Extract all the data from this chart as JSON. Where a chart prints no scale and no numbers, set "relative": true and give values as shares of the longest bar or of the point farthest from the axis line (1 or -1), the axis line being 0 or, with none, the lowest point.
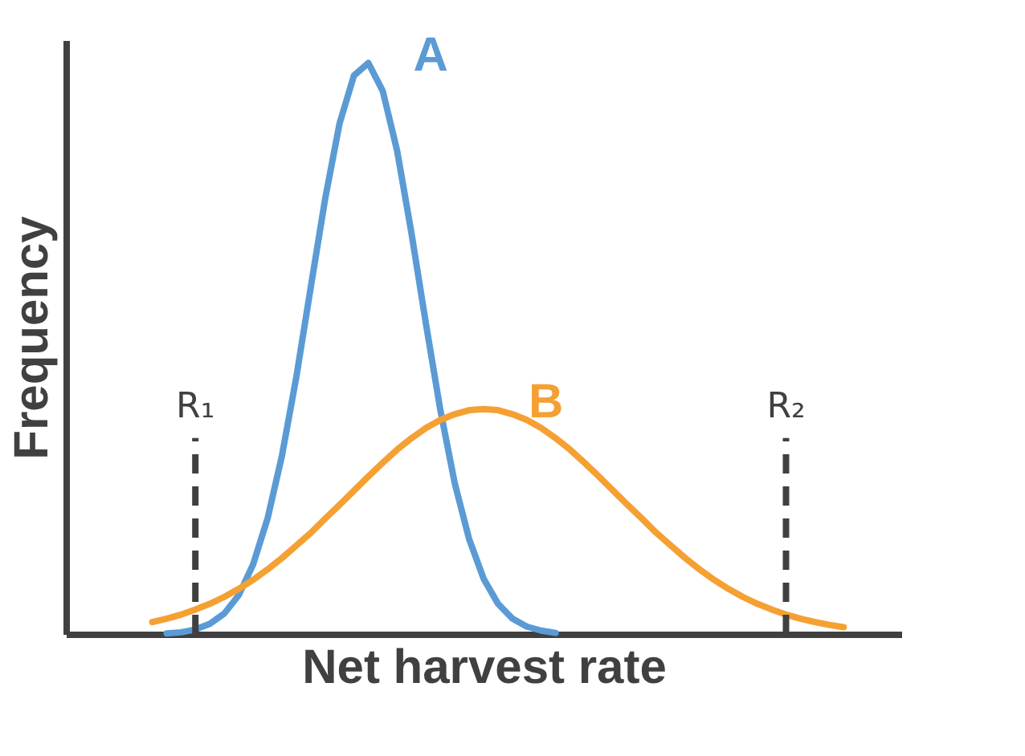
{
  "chart_data": {
    "type": "line",
    "relative": true,
    "xlabel": "Net harvest rate",
    "ylabel": "Frequency",
    "categories": [
      null,
      null,
      null,
      null,
      null,
      null,
      null,
      null,
      null,
      null,
      null,
      null,
      null,
      null,
      null,
      null,
      null,
      null,
      null,
      null,
      null,
      null,
      null,
      null,
      null,
      null,
      null,
      null,
      null,
      null,
      null,
      null,
      null,
      null,
      null,
      null,
      null,
      null,
      null,
      null,
      null,
      null,
      null,
      null,
      null,
      null,
      null,
      null,
      null,
      null,
      null,
      null,
      null,
      null,
      null,
      null,
      null
    ],
    "series": [
      {
        "name": "A",
        "color": "#5b9bd5",
        "values": [
          null,
          null,
          null,
          null,
          null,
          null,
          0.001,
          0.003,
          0.008,
          0.018,
          0.036,
          0.068,
          0.122,
          0.202,
          0.312,
          0.45,
          0.607,
          0.762,
          0.894,
          0.978,
          1,
          0.951,
          0.846,
          0.701,
          0.543,
          0.392,
          0.264,
          0.166,
          0.097,
          0.053,
          0.027,
          0.013,
          0.006,
          0.002,
          null,
          null,
          null,
          null,
          null,
          null,
          null,
          null,
          null,
          null,
          null,
          null,
          null,
          null,
          null,
          null,
          null,
          null,
          null,
          null,
          null,
          null,
          null
        ]
      },
      {
        "name": "B",
        "color": "#f5a033",
        "values": [
          null,
          null,
          null,
          null,
          null,
          0.021,
          0.027,
          0.034,
          0.043,
          0.053,
          0.065,
          0.079,
          0.095,
          0.113,
          0.133,
          0.155,
          0.177,
          0.202,
          0.226,
          0.251,
          0.276,
          0.3,
          0.323,
          0.343,
          0.361,
          0.375,
          0.385,
          0.392,
          0.394,
          0.392,
          0.385,
          0.375,
          0.361,
          0.343,
          0.323,
          0.3,
          0.276,
          0.251,
          0.226,
          0.202,
          0.177,
          0.155,
          0.133,
          0.113,
          0.095,
          0.079,
          0.065,
          0.053,
          0.043,
          0.034,
          0.027,
          0.021,
          0.016,
          0.012,
          null,
          null,
          null
        ]
      }
    ],
    "annotations": [
      "R₁",
      "R₂"
    ],
    "legend": false,
    "grid": false,
    "tick_labels": false,
    "marker": "none",
    "line_style": "solid"
  }
}
